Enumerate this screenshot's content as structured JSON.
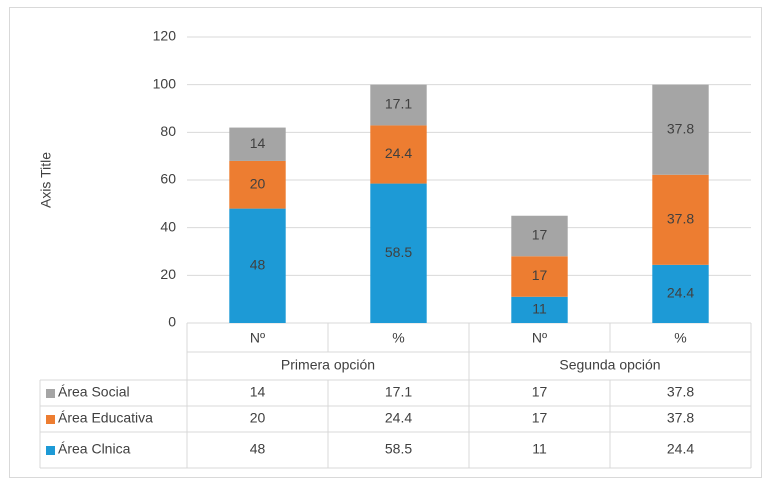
{
  "chart_data": {
    "type": "stacked_bar",
    "y_axis_label": "Axis Title",
    "categories": [
      "Nº",
      "%",
      "Nº",
      "%"
    ],
    "groups": [
      "Primera opción",
      "Segunda opción"
    ],
    "series": [
      {
        "name": "Área Clnica",
        "color": "#1d9ad6",
        "values": [
          48,
          58.5,
          11,
          24.4
        ]
      },
      {
        "name": "Área Educativa",
        "color": "#ed7d31",
        "values": [
          20,
          24.4,
          17,
          37.8
        ]
      },
      {
        "name": "Área Social",
        "color": "#a5a5a5",
        "values": [
          14,
          17.1,
          17,
          37.8
        ]
      }
    ],
    "ylim": [
      0,
      120
    ],
    "yticks": [
      0,
      20,
      40,
      60,
      80,
      100,
      120
    ],
    "grid": true,
    "data_table": true
  }
}
